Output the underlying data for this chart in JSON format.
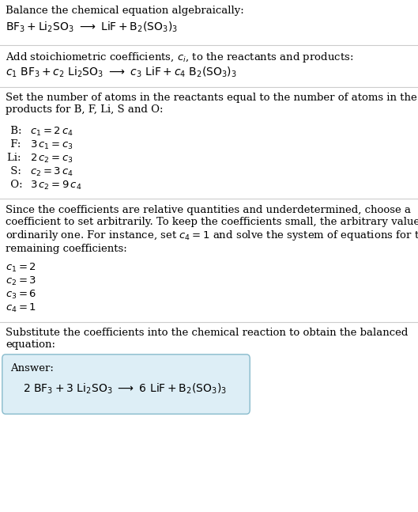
{
  "bg_color": "#ffffff",
  "text_color": "#000000",
  "line_color": "#cccccc",
  "answer_box_facecolor": "#ddeef6",
  "answer_box_edgecolor": "#88bbcc",
  "font_size": 9.5,
  "font_size_eq": 10,
  "sections": {
    "s1_header": "Balance the chemical equation algebraically:",
    "s2_header": "Add stoichiometric coefficients, $c_i$, to the reactants and products:",
    "s3_header": "Set the number of atoms in the reactants equal to the number of atoms in the\nproducts for B, F, Li, S and O:",
    "s4_header": "Since the coefficients are relative quantities and underdetermined, choose a\ncoefficient to set arbitrarily. To keep the coefficients small, the arbitrary value is\nordinarily one. For instance, set $c_4 = 1$ and solve the system of equations for the\nremaining coefficients:",
    "s5_header": "Substitute the coefficients into the chemical reaction to obtain the balanced\nequation:",
    "answer_label": "Answer:"
  }
}
